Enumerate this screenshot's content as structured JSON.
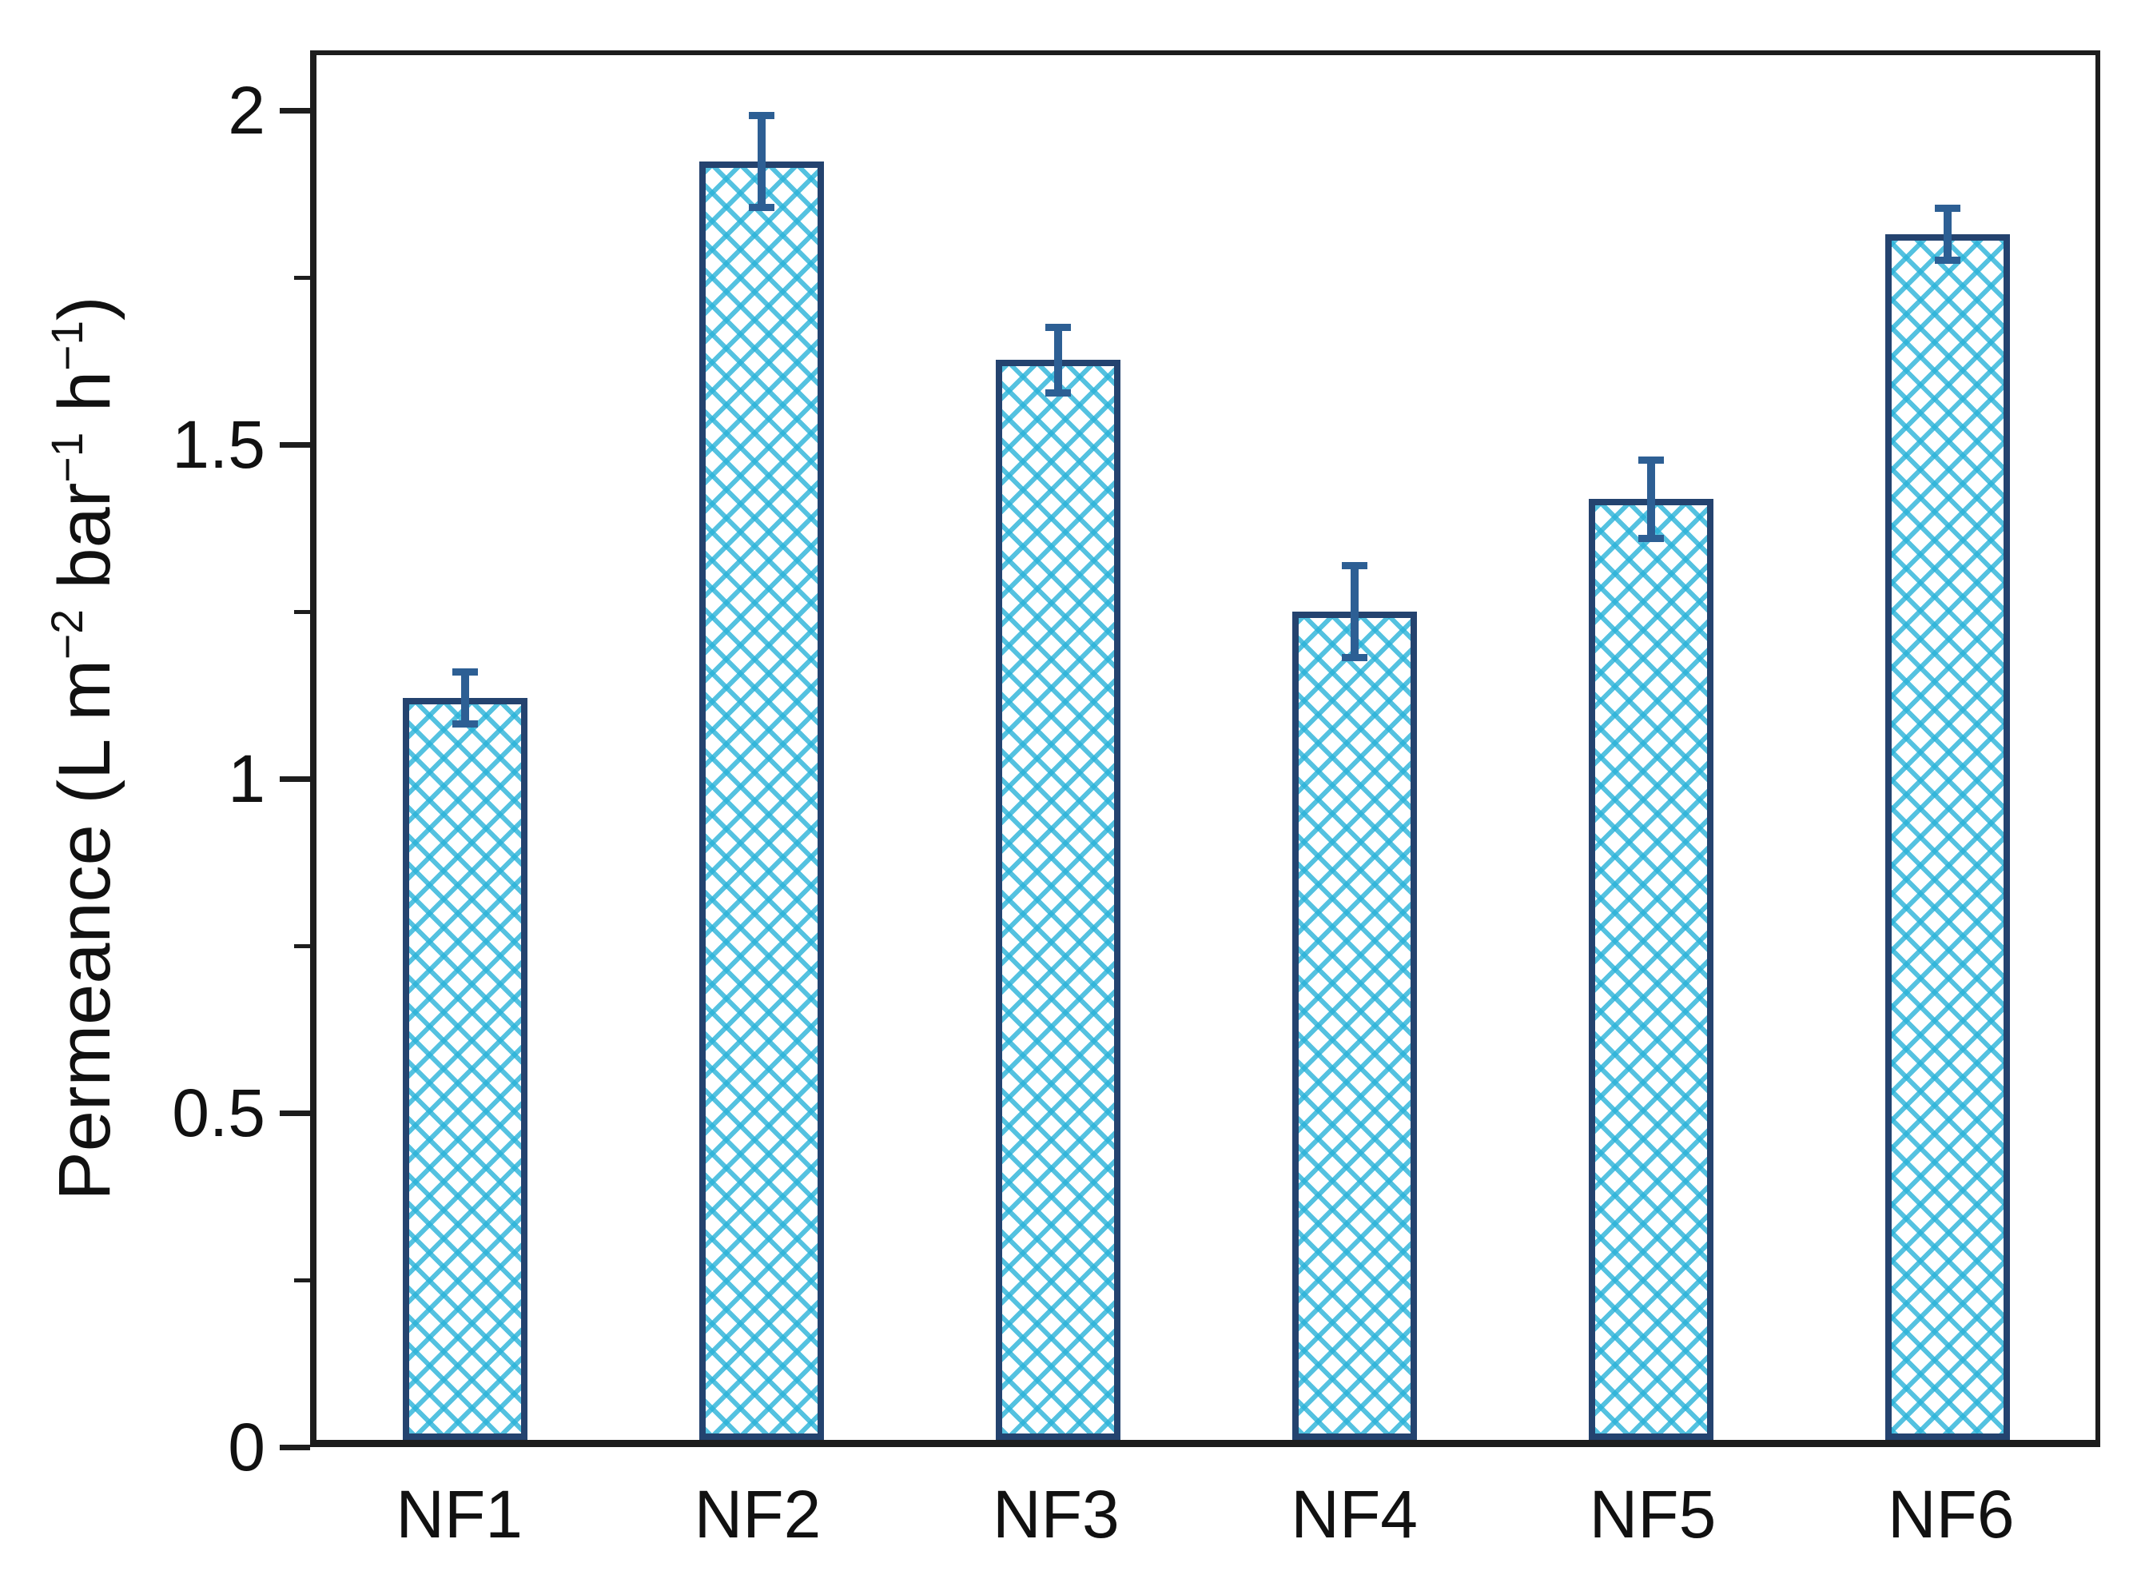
{
  "figure": {
    "background": "#ffffff"
  },
  "chart_data": {
    "type": "bar",
    "title": "",
    "categories": [
      "NF1",
      "NF2",
      "NF3",
      "NF4",
      "NF5",
      "NF6"
    ],
    "values": [
      1.12,
      1.93,
      1.63,
      1.25,
      1.42,
      1.82
    ],
    "errors": [
      0.04,
      0.07,
      0.05,
      0.07,
      0.06,
      0.04
    ],
    "ylabel": "Permeance (L m−2 bar−1 h−1)",
    "ylabel_segments": [
      {
        "t": "Permeance (L m"
      },
      {
        "t": "−2",
        "sup": true
      },
      {
        "t": " bar"
      },
      {
        "t": "−1",
        "sup": true
      },
      {
        "t": " h"
      },
      {
        "t": "−1",
        "sup": true
      },
      {
        "t": ")"
      }
    ],
    "xlabel": "",
    "ylim": [
      0,
      2.09
    ],
    "yticks_major": [
      0,
      0.5,
      1,
      1.5,
      2
    ],
    "ytick_labels": [
      "0",
      "0.5",
      "1",
      "1.5",
      "2"
    ],
    "yticks_minor": [
      0.25,
      0.75,
      1.25,
      1.75
    ],
    "grid": false,
    "legend": null,
    "error_bar_caps": true,
    "bar_style": {
      "hatch": "crosshatch",
      "hatch_color": "#29b2d8",
      "border_color": "#24436f",
      "error_color": "#2d5f94",
      "axis_color": "#1d1d1d",
      "text_color": "#111111"
    }
  }
}
